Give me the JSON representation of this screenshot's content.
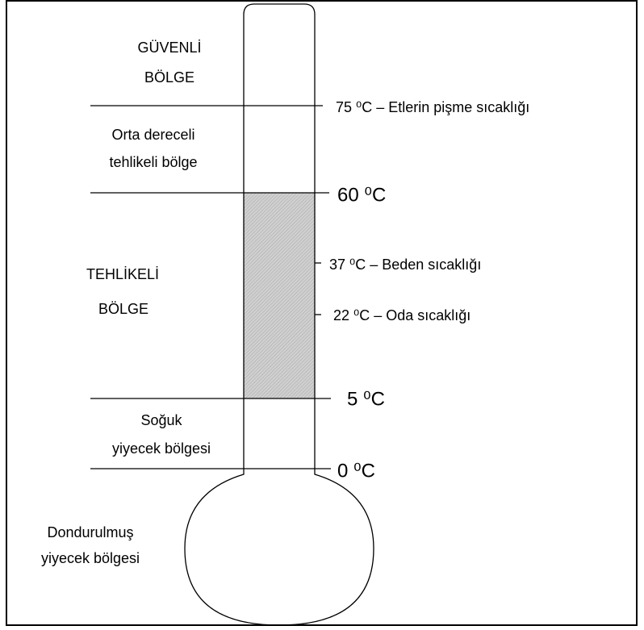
{
  "zones": [
    {
      "lines": [
        "GÜVENLİ",
        "BÖLGE"
      ]
    },
    {
      "lines": [
        "Orta dereceli",
        "tehlikeli bölge"
      ]
    },
    {
      "lines": [
        "TEHLİKELİ",
        "BÖLGE"
      ]
    },
    {
      "lines": [
        "Soğuk",
        "yiyecek bölgesi"
      ]
    },
    {
      "lines": [
        "Dondurulmuş",
        "yiyecek bölgesi"
      ]
    }
  ],
  "markers": [
    {
      "label": "75 ⁰C – Etlerin pişme sıcaklığı"
    },
    {
      "label": "60 ⁰C"
    },
    {
      "label": "37 ⁰C – Beden sıcaklığı"
    },
    {
      "label": "22 ⁰C – Oda sıcaklığı"
    },
    {
      "label": "5 ⁰C"
    },
    {
      "label": "0 ⁰C"
    }
  ]
}
